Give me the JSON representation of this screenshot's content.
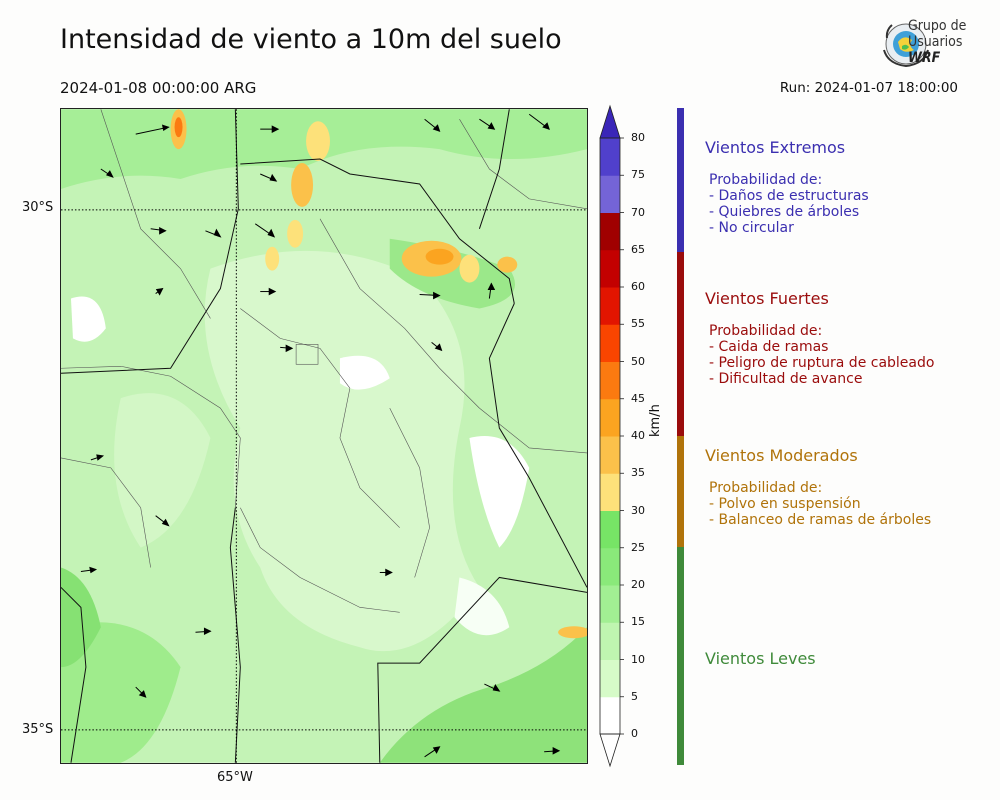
{
  "title": "Intensidad de viento a 10m del suelo",
  "valid_time": "2024-01-08 00:00:00 ARG",
  "run_time": "Run: 2024-01-07 18:00:00",
  "logo": {
    "line1": "Grupo de",
    "line2": "Usuarios",
    "line3": "WRF"
  },
  "map": {
    "lat_labels": [
      "30°S",
      "35°S"
    ],
    "lon_labels": [
      "65°W"
    ]
  },
  "colorbar": {
    "unit": "km/h",
    "ticks": [
      "0",
      "5",
      "10",
      "15",
      "20",
      "25",
      "30",
      "35",
      "40",
      "45",
      "50",
      "55",
      "60",
      "65",
      "70",
      "75",
      "80"
    ],
    "colors": [
      "#ffffff",
      "#d6fbc8",
      "#bff5b0",
      "#a2ef93",
      "#8ae97a",
      "#77e466",
      "#fde17a",
      "#fbc14a",
      "#fba420",
      "#fb7a10",
      "#fa4500",
      "#e21500",
      "#c30000",
      "#a00000",
      "#7464d7",
      "#5040cc",
      "#3a26b8"
    ]
  },
  "categories": [
    {
      "title": "Vientos Extremos",
      "color": "#3b2fb0",
      "lines": [
        "Probabilidad de:",
        "- Daños de estructuras",
        "- Quiebres de árboles",
        "- No circular"
      ]
    },
    {
      "title": "Vientos Fuertes",
      "color": "#9a0c0c",
      "lines": [
        "Probabilidad de:",
        "- Caida de ramas",
        "- Peligro de ruptura de cableado",
        "- Dificultad de avance"
      ]
    },
    {
      "title": "Vientos Moderados",
      "color": "#b0730a",
      "lines": [
        "Probabilidad de:",
        "- Polvo en suspensión",
        "- Balanceo de ramas de árboles"
      ]
    },
    {
      "title": "Vientos Leves",
      "color": "#3f8a3a",
      "lines": []
    }
  ]
}
